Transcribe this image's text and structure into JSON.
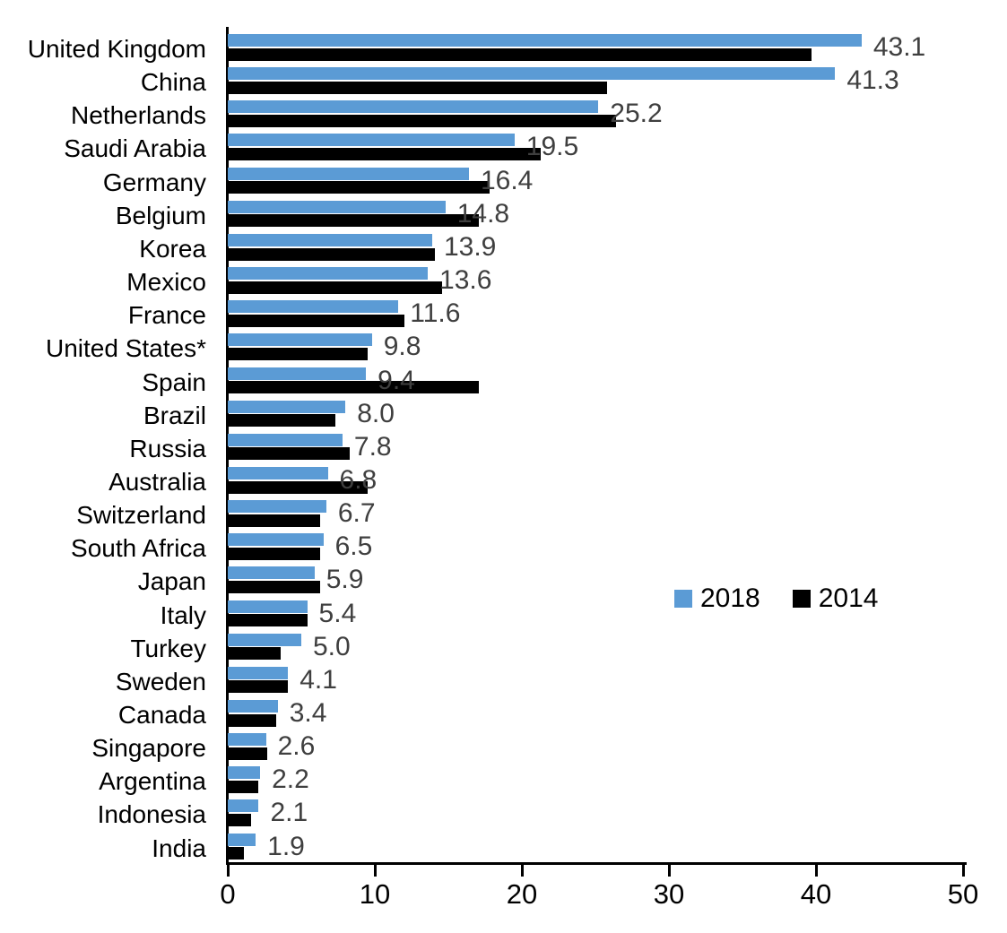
{
  "chart_data": {
    "type": "bar",
    "orientation": "horizontal",
    "categories": [
      "United Kingdom",
      "China",
      "Netherlands",
      "Saudi Arabia",
      "Germany",
      "Belgium",
      "Korea",
      "Mexico",
      "France",
      "United States*",
      "Spain",
      "Brazil",
      "Russia",
      "Australia",
      "Switzerland",
      "South Africa",
      "Japan",
      "Italy",
      "Turkey",
      "Sweden",
      "Canada",
      "Singapore",
      "Argentina",
      "Indonesia",
      "India"
    ],
    "series": [
      {
        "name": "2018",
        "color": "#5B9BD5",
        "values": [
          43.1,
          41.3,
          25.2,
          19.5,
          16.4,
          14.8,
          13.9,
          13.6,
          11.6,
          9.8,
          9.4,
          8.0,
          7.8,
          6.8,
          6.7,
          6.5,
          5.9,
          5.4,
          5.0,
          4.1,
          3.4,
          2.6,
          2.2,
          2.1,
          1.9
        ],
        "data_labels_shown": true
      },
      {
        "name": "2014",
        "color": "#000000",
        "values": [
          39.7,
          25.8,
          26.4,
          21.3,
          17.8,
          17.1,
          14.1,
          14.6,
          12.0,
          9.5,
          17.1,
          7.3,
          8.3,
          9.5,
          6.3,
          6.3,
          6.3,
          5.4,
          3.6,
          4.1,
          3.3,
          2.7,
          2.1,
          1.6,
          1.1
        ],
        "data_labels_shown": false
      }
    ],
    "data_labels": [
      "43.1",
      "41.3",
      "25.2",
      "19.5",
      "16.4",
      "14.8",
      "13.9",
      "13.6",
      "11.6",
      "9.8",
      "9.4",
      "8.0",
      "7.8",
      "6.8",
      "6.7",
      "6.5",
      "5.9",
      "5.4",
      "5.0",
      "4.1",
      "3.4",
      "2.6",
      "2.2",
      "2.1",
      "1.9"
    ],
    "xlim": [
      0,
      50
    ],
    "x_ticks": [
      "0",
      "10",
      "20",
      "30",
      "40",
      "50"
    ],
    "legend": {
      "position": "center-right",
      "items": [
        {
          "label": "2018",
          "color": "#5B9BD5"
        },
        {
          "label": "2014",
          "color": "#000000"
        }
      ]
    },
    "style": {
      "value_label_color": "#3F3F3F",
      "axis_color": "#000000",
      "background": "#ffffff",
      "grid": "off"
    }
  }
}
